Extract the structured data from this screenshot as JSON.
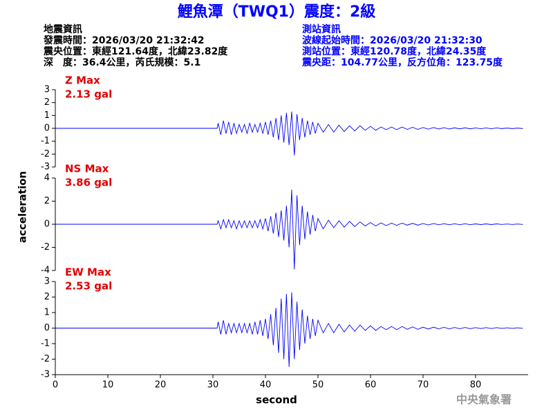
{
  "title": "鯉魚潭（TWQ1）震度：2級",
  "header": {
    "left": [
      "地震資訊",
      "發震時間：2026/03/20 21:32:42",
      "震央位置：東經121.64度，北緯23.82度",
      "深　度：36.4公里，芮氏規模：5.1"
    ],
    "right": [
      "測站資訊",
      "波線起始時間：2026/03/20 21:32:30",
      "測站位置：東經120.78度，北緯24.35度",
      "震央距：104.77公里，反方位角：123.75度"
    ]
  },
  "y_label": "acceleration",
  "x_label": "second",
  "footer": "中央氣象署",
  "chart_data": [
    {
      "type": "line",
      "annotation": [
        "Z Max",
        "2.13 gal"
      ],
      "color": "#0000ff",
      "annotation_color": "#e00000",
      "xlim": [
        0,
        90
      ],
      "ylim": [
        -3,
        3
      ],
      "yticks": [
        -3,
        -2,
        -1,
        0,
        1,
        2,
        3
      ],
      "x": [
        0,
        30.8,
        31,
        31.5,
        32,
        32.5,
        33,
        33.5,
        34,
        34.5,
        35,
        35.5,
        36,
        36.5,
        37,
        37.5,
        38,
        38.5,
        39,
        39.5,
        40,
        40.5,
        41,
        41.5,
        42,
        42.5,
        43,
        43.5,
        44,
        44.5,
        45,
        45.5,
        46,
        46.5,
        47,
        47.5,
        48,
        48.5,
        49,
        49.5,
        50,
        51,
        52,
        53,
        54,
        55,
        56,
        57,
        58,
        59,
        60,
        61,
        62,
        63,
        64,
        65,
        66,
        67,
        68,
        69,
        70,
        71,
        72,
        73,
        74,
        75,
        76,
        77,
        78,
        79,
        80,
        81,
        82,
        83,
        84,
        85,
        86,
        87,
        88,
        89
      ],
      "values": [
        0,
        0,
        0.4,
        -0.5,
        0.6,
        -0.4,
        0.5,
        -0.5,
        0.4,
        -0.4,
        0.3,
        -0.3,
        0.3,
        -0.4,
        0.4,
        -0.3,
        0.3,
        -0.3,
        0.4,
        -0.4,
        0.5,
        -0.5,
        0.6,
        -0.7,
        0.8,
        -0.9,
        1.0,
        -1.1,
        1.2,
        -1.3,
        1.3,
        -2.1,
        1.1,
        -0.9,
        0.8,
        -0.7,
        0.6,
        -0.5,
        0.5,
        -0.4,
        0.4,
        -0.3,
        0.3,
        -0.3,
        0.25,
        -0.25,
        0.2,
        -0.2,
        0.2,
        -0.15,
        0.15,
        -0.15,
        0.1,
        -0.1,
        0.1,
        -0.1,
        0.1,
        -0.08,
        0.08,
        -0.08,
        0.06,
        -0.06,
        0.06,
        -0.05,
        0.05,
        -0.05,
        0.04,
        -0.04,
        0.04,
        -0.04,
        0.03,
        -0.03,
        0.03,
        -0.03,
        0.03,
        -0.02,
        0.02,
        -0.02,
        0.02,
        -0.02
      ]
    },
    {
      "type": "line",
      "annotation": [
        "NS Max",
        "3.86 gal"
      ],
      "color": "#0000ff",
      "annotation_color": "#e00000",
      "xlim": [
        0,
        90
      ],
      "ylim": [
        -4,
        4
      ],
      "yticks": [
        -4,
        -2,
        0,
        2,
        4
      ],
      "x": [
        0,
        30.8,
        31,
        31.5,
        32,
        32.5,
        33,
        33.5,
        34,
        34.5,
        35,
        35.5,
        36,
        36.5,
        37,
        37.5,
        38,
        38.5,
        39,
        39.5,
        40,
        40.5,
        41,
        41.5,
        42,
        42.5,
        43,
        43.5,
        44,
        44.5,
        45,
        45.5,
        46,
        46.5,
        47,
        47.5,
        48,
        48.5,
        49,
        49.5,
        50,
        51,
        52,
        53,
        54,
        55,
        56,
        57,
        58,
        59,
        60,
        61,
        62,
        63,
        64,
        65,
        66,
        67,
        68,
        69,
        70,
        71,
        72,
        73,
        74,
        75,
        76,
        77,
        78,
        79,
        80,
        81,
        82,
        83,
        84,
        85,
        86,
        87,
        88,
        89
      ],
      "values": [
        0,
        0,
        0.3,
        -0.4,
        0.4,
        -0.3,
        0.4,
        -0.3,
        0.3,
        -0.4,
        0.3,
        -0.3,
        0.3,
        -0.3,
        0.3,
        -0.3,
        0.3,
        -0.3,
        0.4,
        -0.4,
        0.5,
        -0.6,
        0.7,
        -0.8,
        1.0,
        -1.1,
        1.2,
        -1.4,
        1.6,
        -2.0,
        3.0,
        -3.9,
        2.5,
        -1.8,
        1.6,
        -1.3,
        1.1,
        -0.9,
        0.8,
        -0.6,
        0.5,
        -0.4,
        0.35,
        -0.3,
        0.3,
        -0.25,
        0.25,
        -0.2,
        0.2,
        -0.15,
        0.15,
        -0.15,
        0.12,
        -0.12,
        0.1,
        -0.1,
        0.1,
        -0.08,
        0.08,
        -0.08,
        0.06,
        -0.06,
        0.06,
        -0.05,
        0.05,
        -0.05,
        0.04,
        -0.04,
        0.04,
        -0.04,
        0.03,
        -0.03,
        0.03,
        -0.03,
        0.03,
        -0.02,
        0.02,
        -0.02,
        0.02,
        -0.02
      ]
    },
    {
      "type": "line",
      "annotation": [
        "EW Max",
        "2.53 gal"
      ],
      "color": "#0000ff",
      "annotation_color": "#e00000",
      "xlim": [
        0,
        90
      ],
      "ylim": [
        -3,
        3
      ],
      "yticks": [
        -3,
        -2,
        -1,
        0,
        1,
        2,
        3
      ],
      "xticks": [
        0,
        10,
        20,
        30,
        40,
        50,
        60,
        70,
        80
      ],
      "x": [
        0,
        30.8,
        31,
        31.5,
        32,
        32.5,
        33,
        33.5,
        34,
        34.5,
        35,
        35.5,
        36,
        36.5,
        37,
        37.5,
        38,
        38.5,
        39,
        39.5,
        40,
        40.5,
        41,
        41.5,
        42,
        42.5,
        43,
        43.5,
        44,
        44.5,
        45,
        45.5,
        46,
        46.5,
        47,
        47.5,
        48,
        48.5,
        49,
        49.5,
        50,
        51,
        52,
        53,
        54,
        55,
        56,
        57,
        58,
        59,
        60,
        61,
        62,
        63,
        64,
        65,
        66,
        67,
        68,
        69,
        70,
        71,
        72,
        73,
        74,
        75,
        76,
        77,
        78,
        79,
        80,
        81,
        82,
        83,
        84,
        85,
        86,
        87,
        88,
        89
      ],
      "values": [
        0,
        0,
        0.4,
        -0.4,
        0.5,
        -0.4,
        0.3,
        -0.3,
        0.3,
        -0.3,
        0.3,
        -0.3,
        0.3,
        -0.3,
        0.3,
        -0.4,
        0.4,
        -0.4,
        0.5,
        -0.5,
        0.6,
        -0.7,
        0.9,
        -1.1,
        1.3,
        -1.6,
        1.9,
        -2.0,
        2.2,
        -2.5,
        2.3,
        -2.0,
        1.7,
        -1.4,
        1.2,
        -1.0,
        0.8,
        -0.7,
        0.6,
        -0.5,
        0.5,
        -0.3,
        0.3,
        -0.3,
        0.25,
        -0.25,
        0.2,
        -0.2,
        0.2,
        -0.15,
        0.15,
        -0.15,
        0.1,
        -0.1,
        0.1,
        -0.1,
        0.1,
        -0.08,
        0.08,
        -0.08,
        0.06,
        -0.06,
        0.06,
        -0.05,
        0.05,
        -0.05,
        0.04,
        -0.04,
        0.04,
        -0.04,
        0.03,
        -0.03,
        0.03,
        -0.03,
        0.03,
        -0.02,
        0.02,
        -0.02,
        0.02,
        -0.02
      ]
    }
  ]
}
